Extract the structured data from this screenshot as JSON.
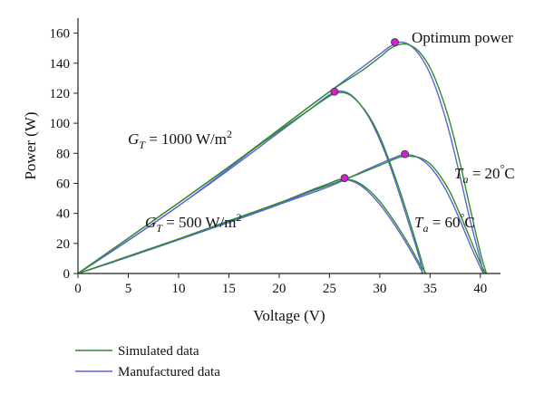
{
  "chart_data": {
    "type": "line",
    "title": "",
    "xlabel": "Voltage (V)",
    "ylabel": "Power (W)",
    "xlim": [
      0,
      42
    ],
    "ylim": [
      0,
      170
    ],
    "xticks": [
      0,
      5,
      10,
      15,
      20,
      25,
      30,
      35,
      40
    ],
    "yticks": [
      0,
      20,
      40,
      60,
      80,
      100,
      120,
      140,
      160
    ],
    "grid": false,
    "legend_position": "bottom-left",
    "colors": {
      "simulated": "#2e8b2e",
      "manufactured": "#5b63d6",
      "marker": "#d21fd2"
    },
    "legend": [
      {
        "key": "simulated",
        "label": "Simulated data"
      },
      {
        "key": "manufactured",
        "label": "Manufactured data"
      }
    ],
    "curves": [
      {
        "condition": "G_T = 1000 W/m2, T_a = 20 °C",
        "voc_simulated": 40.6,
        "voc_manufactured": 40.3,
        "simulated": [
          [
            0,
            0
          ],
          [
            5,
            23.5
          ],
          [
            10,
            47
          ],
          [
            15,
            71
          ],
          [
            20,
            96
          ],
          [
            25,
            121
          ],
          [
            28,
            134
          ],
          [
            30,
            144
          ],
          [
            31,
            149.5
          ],
          [
            32,
            152.5
          ],
          [
            33,
            152
          ],
          [
            34,
            147
          ],
          [
            35,
            137
          ],
          [
            36,
            121
          ],
          [
            37,
            100
          ],
          [
            38,
            73
          ],
          [
            39,
            43
          ],
          [
            40,
            14
          ],
          [
            40.6,
            0
          ]
        ],
        "manufactured": [
          [
            0,
            0
          ],
          [
            5,
            22
          ],
          [
            10,
            45
          ],
          [
            15,
            70
          ],
          [
            20,
            96
          ],
          [
            25,
            121
          ],
          [
            28,
            136
          ],
          [
            30,
            146
          ],
          [
            31,
            151
          ],
          [
            32,
            154
          ],
          [
            33,
            152
          ],
          [
            34,
            145
          ],
          [
            35,
            133
          ],
          [
            36,
            115
          ],
          [
            37,
            92
          ],
          [
            38,
            64
          ],
          [
            39,
            35
          ],
          [
            40,
            9
          ],
          [
            40.3,
            0
          ]
        ]
      },
      {
        "condition": "G_T = 1000 W/m2, T_a = 60 °C",
        "voc_simulated": 34.5,
        "voc_manufactured": 34.2,
        "simulated": [
          [
            0,
            0
          ],
          [
            5,
            23.5
          ],
          [
            10,
            47
          ],
          [
            15,
            71
          ],
          [
            20,
            95
          ],
          [
            23,
            109
          ],
          [
            25,
            118
          ],
          [
            26,
            120.5
          ],
          [
            27,
            119
          ],
          [
            28,
            113
          ],
          [
            29,
            104
          ],
          [
            30,
            91
          ],
          [
            31,
            74
          ],
          [
            32,
            55
          ],
          [
            33,
            34
          ],
          [
            34,
            12
          ],
          [
            34.5,
            0
          ]
        ],
        "manufactured": [
          [
            0,
            0
          ],
          [
            5,
            22
          ],
          [
            10,
            45
          ],
          [
            15,
            69
          ],
          [
            20,
            94
          ],
          [
            23,
            109
          ],
          [
            25,
            119
          ],
          [
            26,
            121.5
          ],
          [
            27,
            119.5
          ],
          [
            28,
            113
          ],
          [
            29,
            103
          ],
          [
            30,
            89
          ],
          [
            31,
            72
          ],
          [
            32,
            52
          ],
          [
            33,
            31
          ],
          [
            34,
            9
          ],
          [
            34.2,
            0
          ]
        ]
      },
      {
        "condition": "G_T = 500 W/m2, T_a = 20 °C",
        "voc_simulated": 40.5,
        "voc_manufactured": 40.3,
        "simulated": [
          [
            0,
            0
          ],
          [
            5,
            11.5
          ],
          [
            10,
            23
          ],
          [
            15,
            35
          ],
          [
            20,
            47
          ],
          [
            25,
            59
          ],
          [
            28,
            66.5
          ],
          [
            30,
            72
          ],
          [
            32,
            77.5
          ],
          [
            33,
            78
          ],
          [
            34,
            77
          ],
          [
            35,
            73
          ],
          [
            36,
            65
          ],
          [
            37,
            54
          ],
          [
            38,
            39
          ],
          [
            39,
            23
          ],
          [
            40,
            7
          ],
          [
            40.5,
            0
          ]
        ],
        "manufactured": [
          [
            0,
            0
          ],
          [
            5,
            11
          ],
          [
            10,
            22.5
          ],
          [
            15,
            34
          ],
          [
            20,
            46
          ],
          [
            25,
            58
          ],
          [
            28,
            67
          ],
          [
            30,
            73
          ],
          [
            32,
            78.5
          ],
          [
            33,
            79
          ],
          [
            34,
            76.5
          ],
          [
            35,
            71
          ],
          [
            36,
            62
          ],
          [
            37,
            50
          ],
          [
            38,
            35
          ],
          [
            39,
            19
          ],
          [
            40,
            4
          ],
          [
            40.3,
            0
          ]
        ]
      },
      {
        "condition": "G_T = 500 W/m2, T_a = 60 °C",
        "voc_simulated": 34.6,
        "voc_manufactured": 34.3,
        "simulated": [
          [
            0,
            0
          ],
          [
            5,
            11.5
          ],
          [
            10,
            23
          ],
          [
            15,
            35
          ],
          [
            20,
            47
          ],
          [
            23,
            55
          ],
          [
            25,
            60
          ],
          [
            26,
            62.5
          ],
          [
            27,
            62.5
          ],
          [
            28,
            60
          ],
          [
            29,
            55
          ],
          [
            30,
            48
          ],
          [
            31,
            39
          ],
          [
            32,
            29
          ],
          [
            33,
            18
          ],
          [
            34,
            6
          ],
          [
            34.6,
            0
          ]
        ],
        "manufactured": [
          [
            0,
            0
          ],
          [
            5,
            11
          ],
          [
            10,
            22.5
          ],
          [
            15,
            34
          ],
          [
            20,
            46
          ],
          [
            23,
            54.5
          ],
          [
            25,
            60
          ],
          [
            26,
            62.5
          ],
          [
            27,
            62
          ],
          [
            28,
            59
          ],
          [
            29,
            53.5
          ],
          [
            30,
            46
          ],
          [
            31,
            37
          ],
          [
            32,
            27
          ],
          [
            33,
            16
          ],
          [
            34,
            4
          ],
          [
            34.3,
            0
          ]
        ]
      }
    ],
    "optimum_points": [
      [
        31.5,
        154
      ],
      [
        25.5,
        121
      ],
      [
        32.5,
        79.5
      ],
      [
        26.5,
        63.5
      ]
    ],
    "annotations": {
      "optimum": "Optimum power",
      "g1000": {
        "sym": "G",
        "sub": "T",
        "text": " = 1000 W/m",
        "sup": "2"
      },
      "g500": {
        "sym": "G",
        "sub": "T",
        "text": " = 500 W/m",
        "sup": "2"
      },
      "ta20": {
        "sym": "T",
        "sub": "a",
        "text": " = 20",
        "sup": "°",
        "unit": "C"
      },
      "ta60": {
        "sym": "T",
        "sub": "a",
        "text": " = 60",
        "sup": "°",
        "unit": "C"
      }
    }
  }
}
